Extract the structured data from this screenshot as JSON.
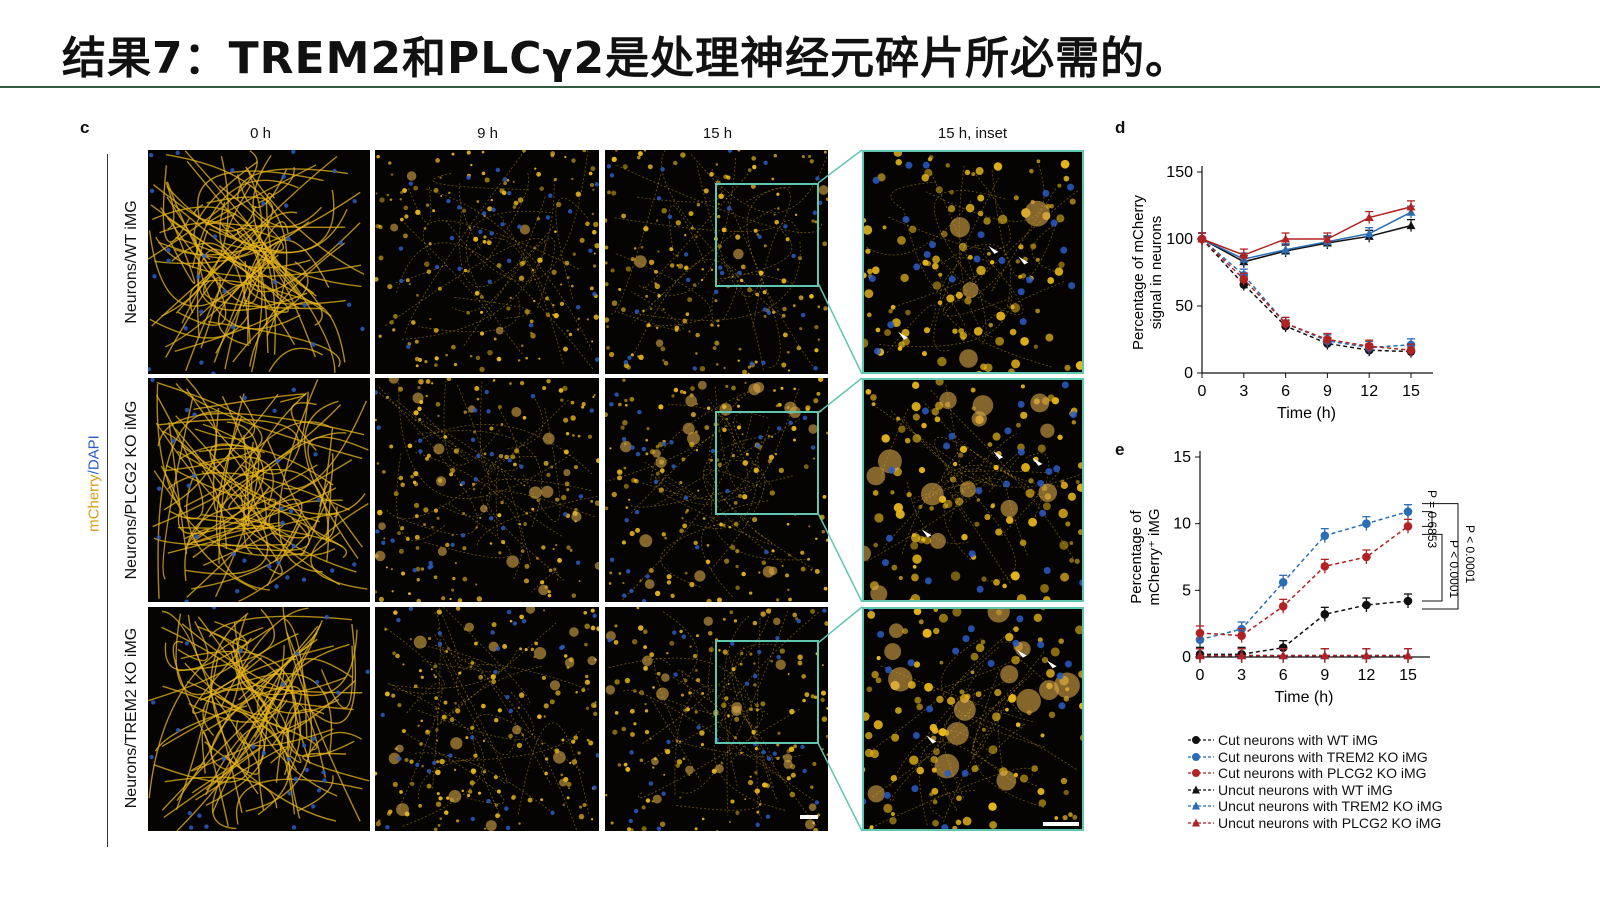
{
  "slide": {
    "title": "结果7：TREM2和PLCγ2是处理神经元碎片所必需的。"
  },
  "figure": {
    "panel_c": {
      "letter": "c",
      "columns": [
        "0 h",
        "9 h",
        "15 h",
        "15 h, inset"
      ],
      "rows": [
        "Neurons/WT iMG",
        "Neurons/PLCG2 KO iMG",
        "Neurons/TREM2 KO iMG"
      ],
      "channel_mcherry": "mCherry",
      "channel_sep": "/",
      "channel_dapi": "DAPI"
    },
    "panel_d": {
      "letter": "d"
    },
    "panel_e": {
      "letter": "e"
    },
    "legend": [
      {
        "label": "Cut neurons with WT iMG",
        "color": "#111111",
        "marker": "circle",
        "dash": true
      },
      {
        "label": "Cut neurons with TREM2 KO iMG",
        "color": "#2a6db5",
        "marker": "circle",
        "dash": true
      },
      {
        "label": "Cut neurons with PLCG2 KO iMG",
        "color": "#b22222",
        "marker": "circle",
        "dash": true
      },
      {
        "label": "Uncut neurons with WT iMG",
        "color": "#111111",
        "marker": "triangle",
        "dash": true
      },
      {
        "label": "Uncut neurons with TREM2 KO iMG",
        "color": "#2a6db5",
        "marker": "triangle",
        "dash": true
      },
      {
        "label": "Uncut neurons with PLCG2 KO iMG",
        "color": "#b22222",
        "marker": "triangle",
        "dash": true
      }
    ],
    "colors": {
      "accent": "#2f5e3f",
      "mcherry": "#e8b61c",
      "dapi": "#2b5cc6",
      "inset": "#5fc7b0"
    }
  },
  "chart_data": [
    {
      "type": "line",
      "panel": "d",
      "xlabel": "Time (h)",
      "ylabel": "Percentage of mCherry signal in neurons",
      "xticks": [
        0,
        3,
        6,
        9,
        12,
        15
      ],
      "yticks": [
        0,
        50,
        100,
        150
      ],
      "xlim": [
        0,
        15
      ],
      "ylim": [
        0,
        150
      ],
      "x": [
        0,
        3,
        6,
        9,
        12,
        15
      ],
      "series": [
        {
          "key": "uncut_wt",
          "color": "#111111",
          "marker": "triangle",
          "dash": false,
          "values": [
            100,
            83,
            91,
            97,
            102,
            110
          ]
        },
        {
          "key": "uncut_trem2",
          "color": "#2a6db5",
          "marker": "triangle",
          "dash": false,
          "values": [
            100,
            85,
            92,
            98,
            104,
            120
          ]
        },
        {
          "key": "uncut_plcg2",
          "color": "#b22222",
          "marker": "triangle",
          "dash": false,
          "values": [
            100,
            88,
            100,
            100,
            116,
            124
          ]
        },
        {
          "key": "cut_wt",
          "color": "#111111",
          "marker": "circle",
          "dash": true,
          "values": [
            100,
            66,
            35,
            22,
            17,
            16
          ]
        },
        {
          "key": "cut_trem2",
          "color": "#2a6db5",
          "marker": "circle",
          "dash": true,
          "values": [
            100,
            73,
            37,
            24,
            19,
            21
          ]
        },
        {
          "key": "cut_plcg2",
          "color": "#b22222",
          "marker": "circle",
          "dash": true,
          "values": [
            100,
            70,
            37,
            25,
            20,
            17
          ]
        }
      ]
    },
    {
      "type": "line",
      "panel": "e",
      "xlabel": "Time (h)",
      "ylabel": "Percentage of mCherry⁺ iMG",
      "xticks": [
        0,
        3,
        6,
        9,
        12,
        15
      ],
      "yticks": [
        0,
        5,
        10,
        15
      ],
      "xlim": [
        0,
        15
      ],
      "ylim": [
        0,
        15
      ],
      "x": [
        0,
        3,
        6,
        9,
        12,
        15
      ],
      "series": [
        {
          "key": "cut_wt",
          "color": "#111111",
          "marker": "circle",
          "dash": true,
          "values": [
            0.2,
            0.2,
            0.7,
            3.2,
            3.9,
            4.2
          ]
        },
        {
          "key": "cut_trem2",
          "color": "#2a6db5",
          "marker": "circle",
          "dash": true,
          "values": [
            1.3,
            2.1,
            5.6,
            9.1,
            10.0,
            10.9
          ]
        },
        {
          "key": "cut_plcg2",
          "color": "#b22222",
          "marker": "circle",
          "dash": true,
          "values": [
            1.8,
            1.6,
            3.8,
            6.8,
            7.5,
            9.8
          ]
        },
        {
          "key": "uncut_wt",
          "color": "#111111",
          "marker": "triangle",
          "dash": true,
          "values": [
            0.1,
            0.1,
            0.1,
            0.1,
            0.1,
            0.1
          ]
        },
        {
          "key": "uncut_trem2",
          "color": "#2a6db5",
          "marker": "triangle",
          "dash": true,
          "values": [
            0.1,
            0.1,
            0.1,
            0.1,
            0.1,
            0.1
          ]
        },
        {
          "key": "uncut_plcg2",
          "color": "#b22222",
          "marker": "triangle",
          "dash": true,
          "values": [
            0.1,
            0.1,
            0.1,
            0.1,
            0.1,
            0.1
          ]
        }
      ],
      "annotations": [
        "P = 0.6853",
        "P < 0.0001",
        "P < 0.0001"
      ]
    }
  ]
}
